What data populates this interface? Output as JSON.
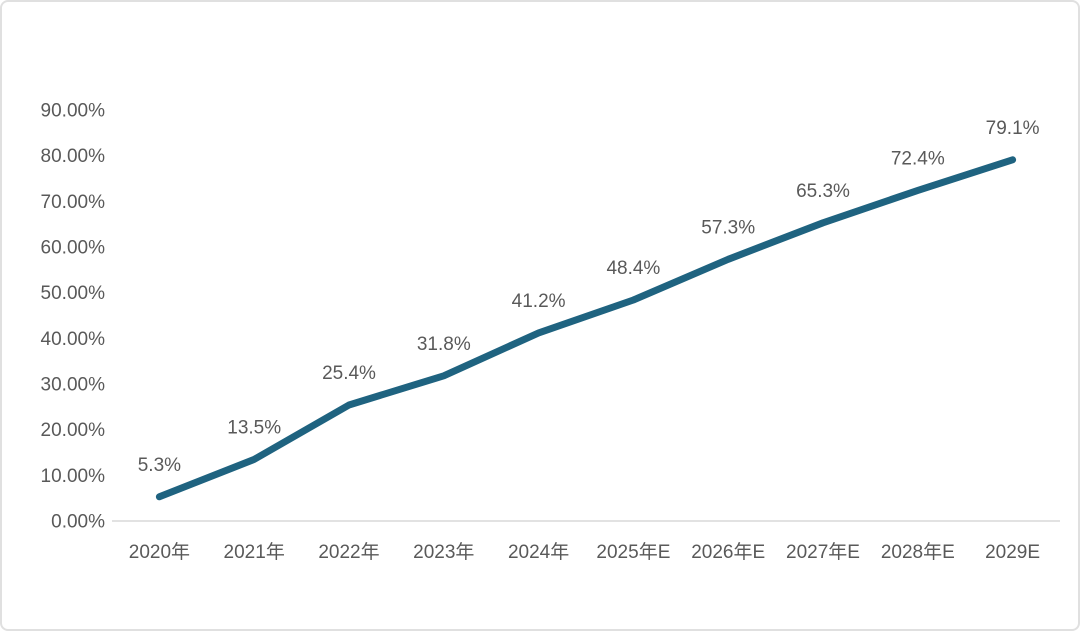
{
  "panel": {
    "background": "#ffffff",
    "border_color": "#e0e0e0"
  },
  "chart_data": {
    "type": "line",
    "title": "",
    "xlabel": "",
    "ylabel": "",
    "categories": [
      "2020年",
      "2021年",
      "2022年",
      "2023年",
      "2024年",
      "2025年E",
      "2026年E",
      "2027年E",
      "2028年E",
      "2029E"
    ],
    "values": [
      5.3,
      13.5,
      25.4,
      31.8,
      41.2,
      48.4,
      57.3,
      65.3,
      72.4,
      79.1
    ],
    "data_labels": [
      "5.3%",
      "13.5%",
      "25.4%",
      "31.8%",
      "41.2%",
      "48.4%",
      "57.3%",
      "65.3%",
      "72.4%",
      "79.1%"
    ],
    "y_ticks": [
      "0.00%",
      "10.00%",
      "20.00%",
      "30.00%",
      "40.00%",
      "50.00%",
      "60.00%",
      "70.00%",
      "80.00%",
      "90.00%"
    ],
    "y_tick_values": [
      0,
      10,
      20,
      30,
      40,
      50,
      60,
      70,
      80,
      90
    ],
    "ylim": [
      0,
      90
    ],
    "grid": false,
    "legend": false,
    "line_color": "#1F6380",
    "label_color": "#595959",
    "axis_line_color": "#D9D9D9"
  }
}
